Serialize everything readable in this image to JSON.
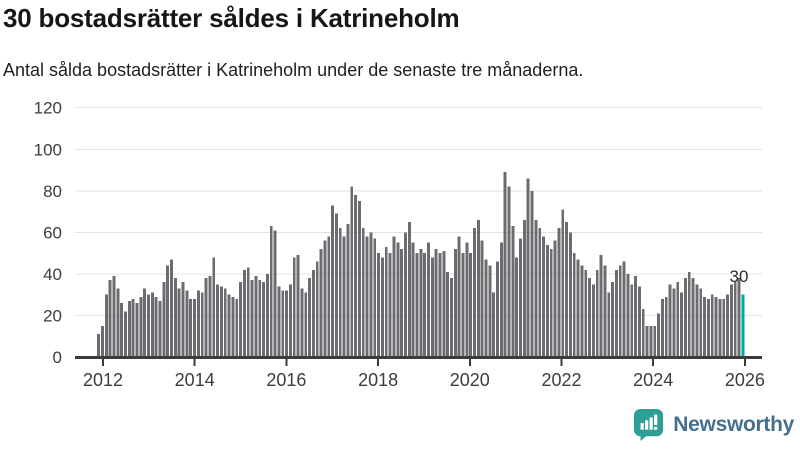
{
  "title": "30 bostadsrätter såldes i Katrineholm",
  "subtitle": "Antal sålda bostadsrätter i Katrineholm under de senaste tre månaderna.",
  "branding": {
    "logo_text": "Newsworthy",
    "logo_icon": "bar-chart-speech-bubble-icon"
  },
  "colors": {
    "bar": "#6c6b70",
    "highlight": "#00a8a8",
    "axis": "#3c3c3c",
    "tick_label": "#3d3d3d",
    "grid": "#e3e3e3",
    "annotation": "#2e2e2e",
    "logo_teal": "#2f9e96",
    "logo_text": "#44708e"
  },
  "chart_data": {
    "type": "bar",
    "title": "30 bostadsrätter såldes i Katrineholm",
    "subtitle": "Antal sålda bostadsrätter i Katrineholm under de senaste tre månaderna.",
    "xlabel": "",
    "ylabel": "",
    "ylim": [
      0,
      120
    ],
    "grid": true,
    "legend": false,
    "x_monthly_start": "2011-12",
    "y_ticks": [
      0,
      20,
      40,
      60,
      80,
      100,
      120
    ],
    "year_ticks": [
      2012,
      2014,
      2016,
      2018,
      2020,
      2022,
      2024,
      2026
    ],
    "last_value_label": "30",
    "highlight_last": true,
    "values": [
      11,
      15,
      30,
      37,
      39,
      33,
      26,
      22,
      27,
      28,
      26,
      29,
      33,
      30,
      31,
      29,
      27,
      36,
      44,
      47,
      38,
      33,
      36,
      32,
      28,
      28,
      32,
      31,
      38,
      39,
      48,
      35,
      34,
      33,
      30,
      29,
      28,
      36,
      42,
      43,
      37,
      39,
      37,
      36,
      40,
      63,
      61,
      34,
      32,
      32,
      35,
      48,
      49,
      33,
      31,
      38,
      42,
      46,
      52,
      56,
      58,
      73,
      69,
      62,
      58,
      64,
      82,
      78,
      75,
      62,
      58,
      60,
      57,
      50,
      48,
      53,
      50,
      58,
      55,
      52,
      60,
      65,
      55,
      50,
      52,
      50,
      55,
      48,
      52,
      50,
      51,
      41,
      38,
      52,
      58,
      50,
      55,
      50,
      62,
      66,
      56,
      47,
      44,
      31,
      46,
      55,
      89,
      82,
      63,
      48,
      57,
      66,
      86,
      80,
      66,
      62,
      58,
      54,
      52,
      56,
      62,
      71,
      65,
      60,
      50,
      47,
      44,
      42,
      38,
      35,
      42,
      49,
      44,
      31,
      36,
      42,
      44,
      46,
      40,
      35,
      39,
      34,
      23,
      15,
      15,
      15,
      21,
      28,
      29,
      35,
      33,
      36,
      31,
      38,
      41,
      38,
      35,
      33,
      29,
      28,
      30,
      29,
      28,
      28,
      30,
      35,
      36,
      38,
      30
    ]
  }
}
